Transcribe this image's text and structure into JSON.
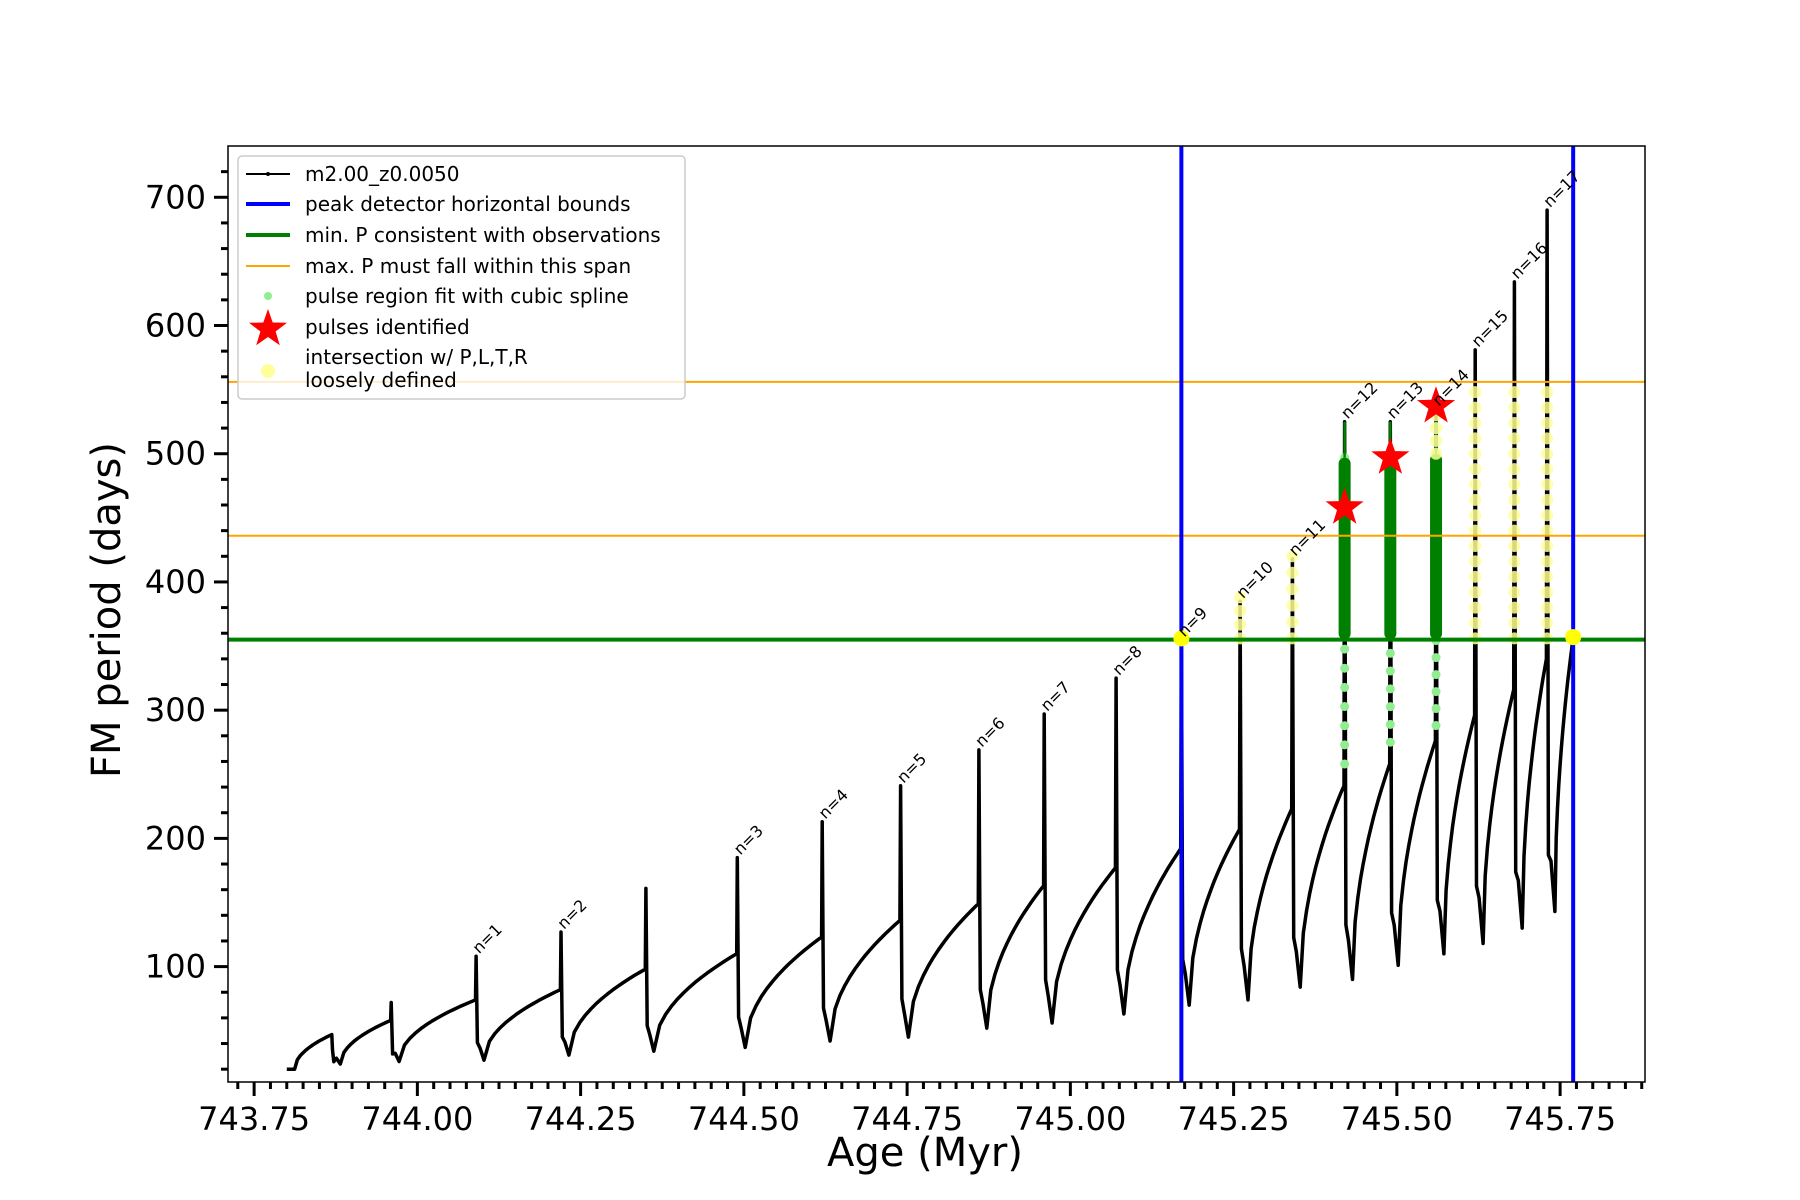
{
  "chart_data": {
    "type": "line",
    "title": "",
    "xlabel": "Age (Myr)",
    "ylabel": "FM period (days)",
    "xlim": [
      743.71,
      745.88
    ],
    "ylim": [
      10,
      740
    ],
    "x_ticks": [
      743.75,
      744.0,
      744.25,
      744.5,
      744.75,
      745.0,
      745.25,
      745.5,
      745.75
    ],
    "x_tick_labels": [
      "743.75",
      "744.00",
      "744.25",
      "744.50",
      "744.75",
      "745.00",
      "745.25",
      "745.50",
      "745.75"
    ],
    "y_ticks": [
      100,
      200,
      300,
      400,
      500,
      600,
      700
    ],
    "y_tick_labels": [
      "100",
      "200",
      "300",
      "400",
      "500",
      "600",
      "700"
    ],
    "grid": false,
    "legend_position": "top-left",
    "legend": [
      {
        "label": "m2.00_z0.0050",
        "marker": "black-line"
      },
      {
        "label": "peak detector horizontal bounds",
        "marker": "blue-line"
      },
      {
        "label": "min. P consistent with observations",
        "marker": "green-line"
      },
      {
        "label": "max. P must fall within this span",
        "marker": "orange-line"
      },
      {
        "label": "pulse region fit with cubic spline",
        "marker": "lightgreen-dot"
      },
      {
        "label": "pulses identified",
        "marker": "red-star"
      },
      {
        "label": "intersection w/ P,L,T,R",
        "marker": "yellow-dot"
      },
      {
        "label": "loosely defined",
        "marker": "none"
      }
    ],
    "vertical_bounds": [
      745.17,
      745.77
    ],
    "min_period_line": 355,
    "max_period_span": [
      436,
      556
    ],
    "track_start": {
      "x": 743.8,
      "y": 20
    },
    "pulses": [
      {
        "x": 743.87,
        "spike": 35,
        "base_before": 47,
        "trough": 24,
        "label": ""
      },
      {
        "x": 743.96,
        "spike": 72,
        "base_before": 58,
        "trough": 26,
        "label": ""
      },
      {
        "x": 744.09,
        "spike": 108,
        "base_before": 74,
        "trough": 27,
        "label": "n=1"
      },
      {
        "x": 744.22,
        "spike": 127,
        "base_before": 82,
        "trough": 31,
        "label": "n=2"
      },
      {
        "x": 744.35,
        "spike": 161,
        "base_before": 98,
        "trough": 34,
        "label": ""
      },
      {
        "x": 744.49,
        "spike": 185,
        "base_before": 110,
        "trough": 37,
        "label": "n=3"
      },
      {
        "x": 744.62,
        "spike": 213,
        "base_before": 123,
        "trough": 42,
        "label": "n=4"
      },
      {
        "x": 744.74,
        "spike": 241,
        "base_before": 136,
        "trough": 45,
        "label": "n=5"
      },
      {
        "x": 744.86,
        "spike": 269,
        "base_before": 149,
        "trough": 52,
        "label": "n=6"
      },
      {
        "x": 744.96,
        "spike": 297,
        "base_before": 163,
        "trough": 56,
        "label": "n=7"
      },
      {
        "x": 745.07,
        "spike": 325,
        "base_before": 177,
        "trough": 63,
        "label": "n=8"
      },
      {
        "x": 745.17,
        "spike": 355,
        "base_before": 192,
        "trough": 70,
        "label": "n=9"
      },
      {
        "x": 745.26,
        "spike": 385,
        "base_before": 207,
        "trough": 74,
        "label": "n=10"
      },
      {
        "x": 745.34,
        "spike": 418,
        "base_before": 223,
        "trough": 84,
        "label": "n=11"
      },
      {
        "x": 745.42,
        "spike": 525,
        "base_before": 241,
        "trough": 90,
        "label": "n=12"
      },
      {
        "x": 745.49,
        "spike": 525,
        "base_before": 258,
        "trough": 101,
        "label": "n=13"
      },
      {
        "x": 745.56,
        "spike": 535,
        "base_before": 276,
        "trough": 110,
        "label": "n=14"
      },
      {
        "x": 745.62,
        "spike": 581,
        "base_before": 296,
        "trough": 118,
        "label": "n=15"
      },
      {
        "x": 745.68,
        "spike": 634,
        "base_before": 316,
        "trough": 130,
        "label": "n=16"
      },
      {
        "x": 745.73,
        "spike": 690,
        "base_before": 340,
        "trough": 143,
        "label": "n=17"
      }
    ],
    "track_end": {
      "x": 745.77,
      "y": 357
    },
    "spline_regions": [
      {
        "x": 745.42,
        "y_min": 258,
        "y_max": 497
      },
      {
        "x": 745.49,
        "y_min": 275,
        "y_max": 497
      },
      {
        "x": 745.56,
        "y_min": 288,
        "y_max": 500
      }
    ],
    "pulses_identified": [
      {
        "x": 745.42,
        "y": 458
      },
      {
        "x": 745.49,
        "y": 497
      },
      {
        "x": 745.56,
        "y": 537
      }
    ],
    "intersections": [
      {
        "x": 745.17,
        "y": 356
      },
      {
        "x": 745.77,
        "y": 357
      }
    ],
    "loosely_defined": [
      {
        "x": 745.26,
        "y_min": 356,
        "y_max": 388
      },
      {
        "x": 745.34,
        "y_min": 356,
        "y_max": 420
      },
      {
        "x": 745.56,
        "y_min": 500,
        "y_max": 530
      },
      {
        "x": 745.62,
        "y_min": 356,
        "y_max": 548
      },
      {
        "x": 745.68,
        "y_min": 356,
        "y_max": 548
      },
      {
        "x": 745.73,
        "y_min": 356,
        "y_max": 548
      }
    ],
    "colors": {
      "track": "#000000",
      "bounds": "#0000ff",
      "min_period": "#008000",
      "max_period": "#ffa500",
      "spline": "#90ee90",
      "pulse_star": "#ff0000",
      "intersection": "#ffff00",
      "loosely_defined": "#ffff99"
    }
  }
}
